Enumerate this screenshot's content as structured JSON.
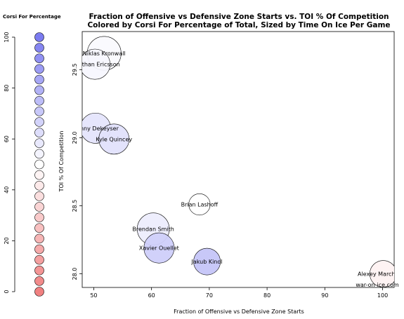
{
  "chart_data": {
    "type": "scatter",
    "title_line1": "Fraction of Offensive vs Defensive Zone Starts vs. TOI % Of Competition",
    "title_line2": "Colored by Corsi For Percentage of Total, Sized by Time On Ice Per Game",
    "xlabel": "Fraction of Offensive vs Defensive Zone Starts",
    "ylabel": "TOI % Of Competition",
    "xlim": [
      48,
      102
    ],
    "ylim": [
      27.9,
      29.78
    ],
    "xticks": [
      50,
      60,
      70,
      80,
      90,
      100
    ],
    "yticks": [
      28.0,
      28.5,
      29.0,
      29.5
    ],
    "watermark": "war-on-ice.com",
    "points": [
      {
        "name": "Niklas Kronwall",
        "x": 51.8,
        "y": 29.62,
        "size": 19,
        "corsi": 52
      },
      {
        "name": "Jonathan Ericsson",
        "x": 50.2,
        "y": 29.54,
        "size": 17,
        "corsi": 53
      },
      {
        "name": "Danny Dekeyser",
        "x": 50.3,
        "y": 29.07,
        "size": 17,
        "corsi": 60
      },
      {
        "name": "Kyle Quincey",
        "x": 53.5,
        "y": 28.99,
        "size": 17,
        "corsi": 61
      },
      {
        "name": "Brian Lashoff",
        "x": 68.3,
        "y": 28.51,
        "size": 12,
        "corsi": 50
      },
      {
        "name": "Brendan Smith",
        "x": 60.3,
        "y": 28.33,
        "size": 18,
        "corsi": 57
      },
      {
        "name": "Xavier Ouellet",
        "x": 61.3,
        "y": 28.19,
        "size": 17,
        "corsi": 68
      },
      {
        "name": "Jakub Kindl",
        "x": 69.6,
        "y": 28.09,
        "size": 15,
        "corsi": 72
      },
      {
        "name": "Alexey Marchenko",
        "x": 100.1,
        "y": 28.0,
        "size": 15,
        "corsi": 45
      }
    ],
    "colorbar": {
      "title": "Corsi For Percentage",
      "ticks": [
        0,
        20,
        40,
        60,
        80,
        100
      ],
      "range": [
        0,
        100
      ],
      "low_color": "#f08080",
      "mid_color": "#ffffff",
      "high_color": "#7b7bf0"
    }
  }
}
